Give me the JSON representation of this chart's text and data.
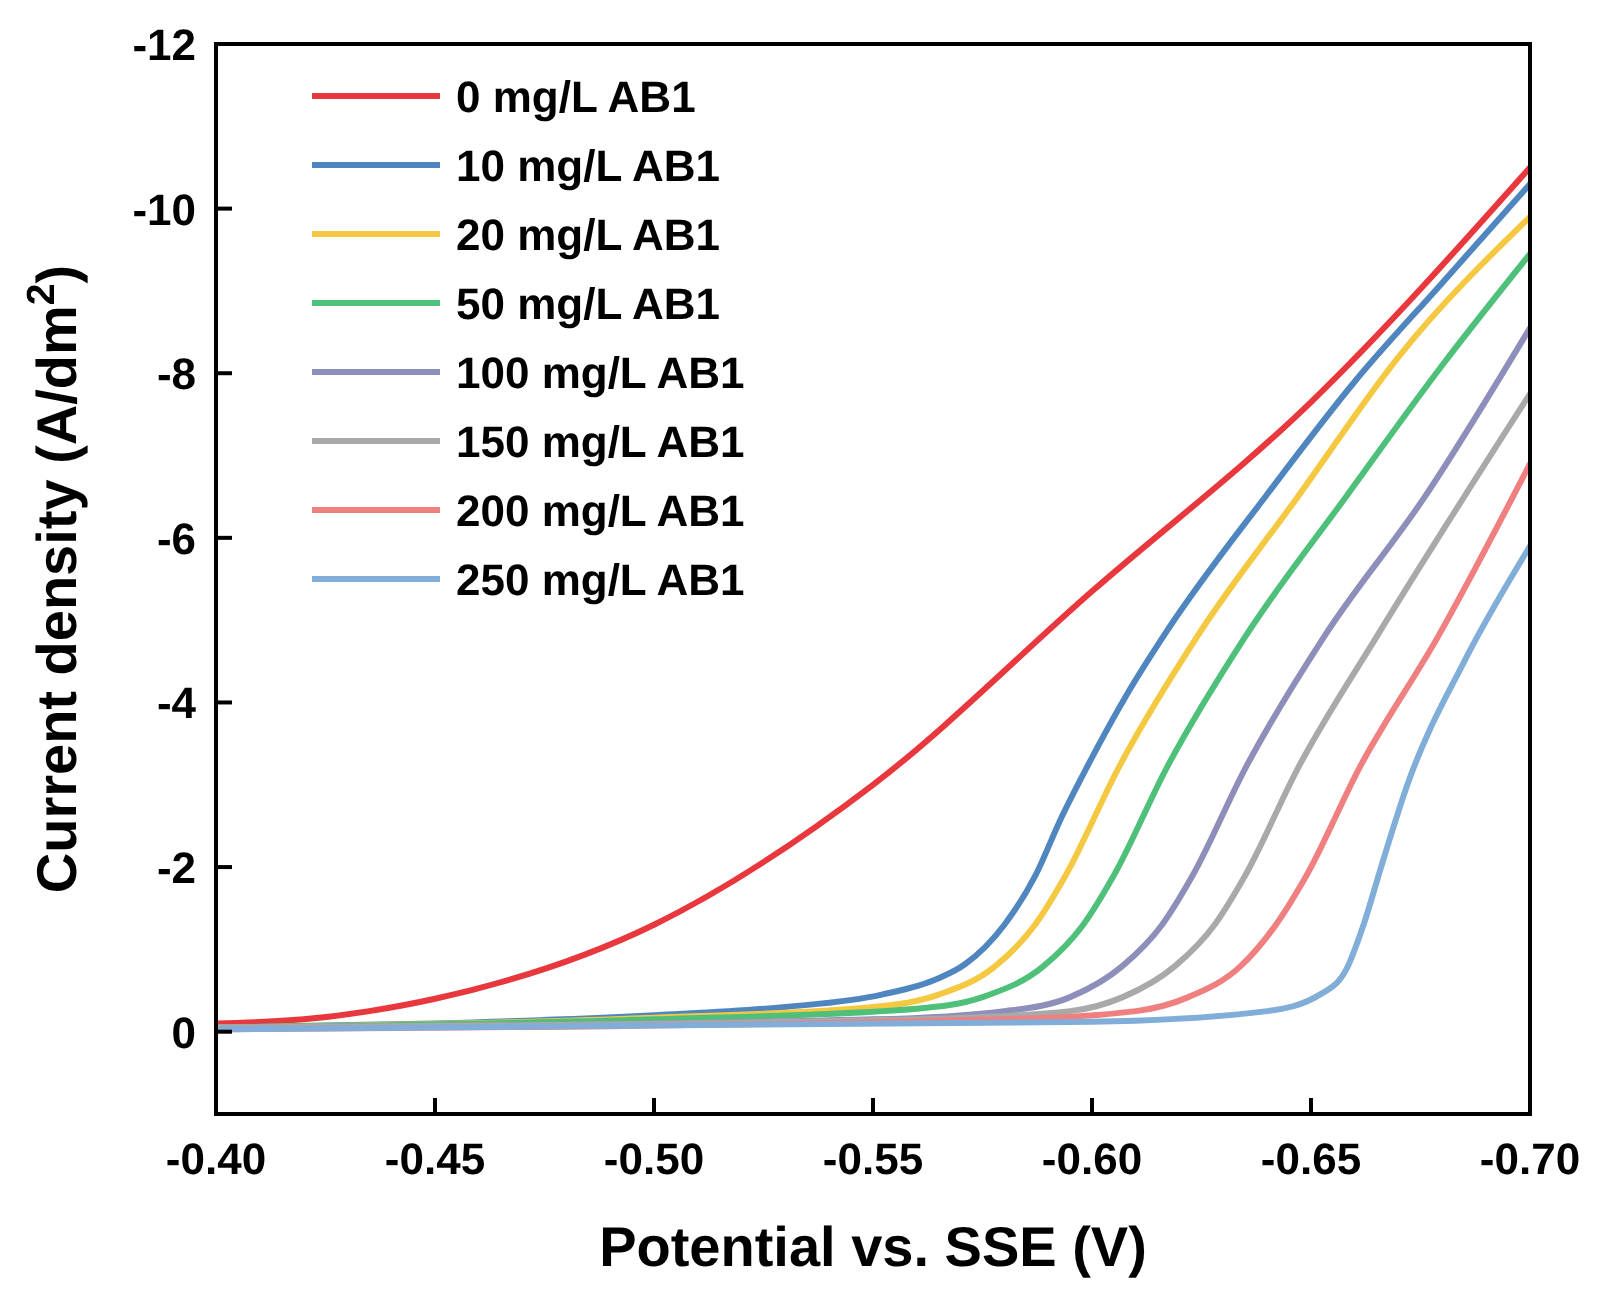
{
  "chart_data": {
    "type": "line",
    "xlabel": "Potential vs. SSE (V)",
    "ylabel": "Current density (A/dm$^{2}$)",
    "xlim": [
      -0.4,
      -0.7
    ],
    "xticks": [
      {
        "value": -0.4,
        "label": "-0.40"
      },
      {
        "value": -0.45,
        "label": "-0.45"
      },
      {
        "value": -0.5,
        "label": "-0.50"
      },
      {
        "value": -0.55,
        "label": "-0.55"
      },
      {
        "value": -0.6,
        "label": "-0.60"
      },
      {
        "value": -0.65,
        "label": "-0.65"
      },
      {
        "value": -0.7,
        "label": "-0.70"
      }
    ],
    "ylim": [
      1,
      -12
    ],
    "yticks": [
      -12,
      -10,
      -8,
      -6,
      -4,
      -2,
      0
    ],
    "grid": false,
    "legend": "top left",
    "marker": "none",
    "line_style": "solid",
    "series": [
      {
        "name": "0 mg/L AB1",
        "color": "#e8383d",
        "x": [
          -0.4,
          -0.42,
          -0.435,
          -0.45,
          -0.5,
          -0.55,
          -0.6,
          -0.65,
          -0.7
        ],
        "values": [
          -0.1,
          -0.15,
          -0.25,
          -0.4,
          -1.3,
          -3.0,
          -5.35,
          -7.65,
          -10.5
        ]
      },
      {
        "name": "10 mg/L AB1",
        "color": "#4f86c0",
        "x": [
          -0.4,
          -0.45,
          -0.5,
          -0.53,
          -0.552,
          -0.565,
          -0.571,
          -0.58,
          -0.587,
          -0.593,
          -0.599,
          -0.608,
          -0.617,
          -0.64,
          -0.66,
          -0.68,
          -0.7
        ],
        "values": [
          -0.05,
          -0.1,
          -0.2,
          -0.3,
          -0.45,
          -0.65,
          -0.82,
          -1.3,
          -1.89,
          -2.6,
          -3.23,
          -4.1,
          -4.86,
          -6.53,
          -7.9,
          -9.1,
          -10.3
        ]
      },
      {
        "name": "20 mg/L AB1",
        "color": "#f5c842",
        "x": [
          -0.4,
          -0.5,
          -0.55,
          -0.565,
          -0.578,
          -0.587,
          -0.594,
          -0.606,
          -0.624,
          -0.647,
          -0.67,
          -0.7
        ],
        "values": [
          -0.05,
          -0.17,
          -0.3,
          -0.45,
          -0.8,
          -1.3,
          -1.9,
          -3.2,
          -4.8,
          -6.5,
          -8.2,
          -9.9
        ]
      },
      {
        "name": "50 mg/L AB1",
        "color": "#4fc07a",
        "x": [
          -0.4,
          -0.5,
          -0.56,
          -0.575,
          -0.589,
          -0.598,
          -0.605,
          -0.617,
          -0.635,
          -0.658,
          -0.68,
          -0.7
        ],
        "values": [
          -0.05,
          -0.15,
          -0.28,
          -0.42,
          -0.8,
          -1.3,
          -1.9,
          -3.2,
          -4.8,
          -6.5,
          -8.1,
          -9.45
        ]
      },
      {
        "name": "100 mg/L AB1",
        "color": "#8d8fba",
        "x": [
          -0.4,
          -0.55,
          -0.58,
          -0.595,
          -0.607,
          -0.616,
          -0.623,
          -0.635,
          -0.653,
          -0.676,
          -0.7
        ],
        "values": [
          -0.05,
          -0.15,
          -0.25,
          -0.42,
          -0.8,
          -1.3,
          -1.9,
          -3.2,
          -4.8,
          -6.5,
          -8.55
        ]
      },
      {
        "name": "150 mg/L AB1",
        "color": "#a9a9a9",
        "x": [
          -0.4,
          -0.56,
          -0.595,
          -0.607,
          -0.619,
          -0.628,
          -0.635,
          -0.647,
          -0.665,
          -0.7
        ],
        "values": [
          -0.05,
          -0.15,
          -0.25,
          -0.42,
          -0.8,
          -1.3,
          -1.9,
          -3.2,
          -4.8,
          -7.75
        ]
      },
      {
        "name": "200 mg/L AB1",
        "color": "#f07f80",
        "x": [
          -0.4,
          -0.58,
          -0.61,
          -0.622,
          -0.634,
          -0.642,
          -0.649,
          -0.661,
          -0.679,
          -0.7
        ],
        "values": [
          -0.03,
          -0.15,
          -0.25,
          -0.42,
          -0.8,
          -1.3,
          -1.9,
          -3.2,
          -4.8,
          -6.9
        ]
      },
      {
        "name": "250 mg/L AB1",
        "color": "#80aed8",
        "x": [
          -0.4,
          -0.6,
          -0.64,
          -0.652,
          -0.658,
          -0.662,
          -0.666,
          -0.672,
          -0.685,
          -0.7
        ],
        "values": [
          -0.03,
          -0.12,
          -0.25,
          -0.45,
          -0.75,
          -1.3,
          -2.0,
          -3.0,
          -4.5,
          -5.9
        ]
      }
    ]
  }
}
